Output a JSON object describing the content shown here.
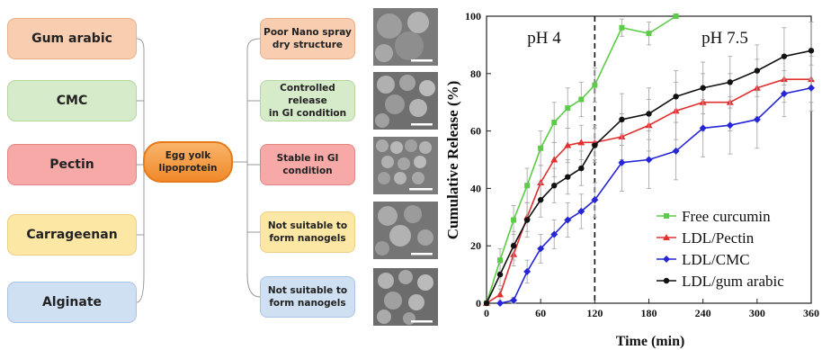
{
  "diagram": {
    "left_items": [
      "Gum arabic",
      "CMC",
      "Pectin",
      "Carrageenan",
      "Alginate"
    ],
    "center_label": "Egg yolk\nlipoprotein",
    "right_items": [
      "Poor Nano spray\ndry structure",
      "Controlled release\nin GI condition",
      "Stable in GI\ncondition",
      "Not suitable to\nform nanogels",
      "Not suitable to\nform nanogels"
    ],
    "colors": {
      "gum_arabic": "#f8cdb0",
      "cmc": "#d6ebc9",
      "pectin": "#f6a9a6",
      "carrageenan": "#fde7a4",
      "alginate": "#cfe0f2",
      "center": "#f59a40"
    }
  },
  "chart_data": {
    "type": "line",
    "xlabel": "Time (min)",
    "ylabel": "Cumulative Release (%)",
    "xlim": [
      0,
      360
    ],
    "ylim": [
      0,
      100
    ],
    "xticks": [
      0,
      60,
      120,
      180,
      240,
      300,
      360
    ],
    "yticks": [
      0,
      20,
      40,
      60,
      80,
      100
    ],
    "annotations": [
      {
        "text": "pH 4"
      },
      {
        "text": "pH 7.5"
      }
    ],
    "phase_divider_x": 120,
    "legend_position": "bottom-right",
    "series": [
      {
        "name": "Free curcumin",
        "color": "#5ccc47",
        "marker": "square",
        "x": [
          0,
          15,
          30,
          45,
          60,
          75,
          90,
          105,
          120,
          150,
          180,
          210
        ],
        "y": [
          0,
          15,
          29,
          41,
          54,
          63,
          68,
          71,
          76,
          96,
          94,
          100
        ],
        "err": [
          0,
          4,
          5,
          6,
          6,
          7,
          7,
          6,
          6,
          3,
          4,
          0
        ]
      },
      {
        "name": "LDL/Pectin",
        "color": "#e03030",
        "marker": "triangle",
        "x": [
          0,
          15,
          30,
          45,
          60,
          75,
          90,
          105,
          120,
          150,
          180,
          210,
          240,
          270,
          300,
          330,
          360
        ],
        "y": [
          0,
          3,
          17,
          30,
          42,
          50,
          55,
          56,
          56,
          58,
          62,
          67,
          70,
          70,
          75,
          78,
          78
        ],
        "err": [
          0,
          2,
          4,
          5,
          6,
          6,
          6,
          6,
          6,
          8,
          9,
          10,
          10,
          10,
          10,
          8,
          8
        ]
      },
      {
        "name": "LDL/CMC",
        "color": "#2626d6",
        "marker": "diamond",
        "x": [
          15,
          30,
          45,
          60,
          75,
          90,
          105,
          120,
          150,
          180,
          210,
          240,
          270,
          300,
          330,
          360
        ],
        "y": [
          0,
          1,
          11,
          19,
          24,
          29,
          32,
          36,
          49,
          50,
          53,
          61,
          62,
          64,
          73,
          75
        ],
        "err": [
          0,
          1,
          4,
          5,
          5,
          6,
          6,
          6,
          10,
          10,
          10,
          10,
          10,
          10,
          8,
          8
        ]
      },
      {
        "name": "LDL/gum arabic",
        "color": "#111111",
        "marker": "circle",
        "x": [
          0,
          15,
          30,
          45,
          60,
          75,
          90,
          105,
          120,
          150,
          180,
          210,
          240,
          270,
          300,
          330,
          360
        ],
        "y": [
          0,
          10,
          20,
          29,
          36,
          41,
          44,
          47,
          55,
          64,
          66,
          72,
          75,
          77,
          81,
          86,
          88
        ],
        "err": [
          0,
          4,
          5,
          6,
          6,
          6,
          6,
          6,
          6,
          9,
          9,
          9,
          9,
          9,
          9,
          10,
          10
        ]
      }
    ]
  }
}
